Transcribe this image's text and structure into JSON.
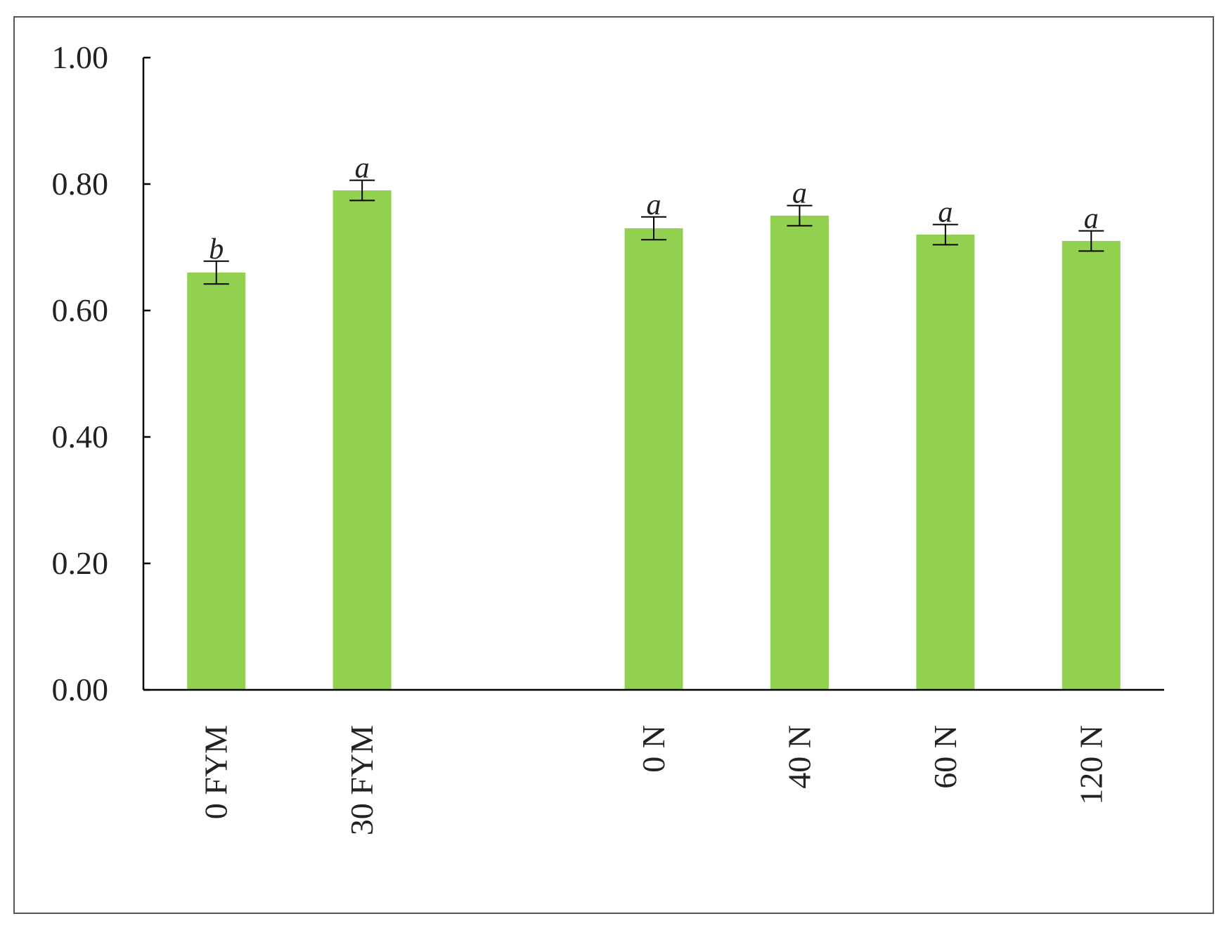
{
  "chart_data": {
    "type": "bar",
    "categories": [
      "0 FYM",
      "30 FYM",
      null,
      "0 N",
      "40 N",
      "60 N",
      "120 N"
    ],
    "values": [
      0.66,
      0.79,
      null,
      0.73,
      0.75,
      0.72,
      0.71
    ],
    "errors": [
      0.018,
      0.016,
      null,
      0.018,
      0.016,
      0.016,
      0.016
    ],
    "letters": [
      "b",
      "a",
      null,
      "a",
      "a",
      "a",
      "a"
    ],
    "color": "#92d050",
    "ylim": [
      0,
      1
    ],
    "yticks": [
      {
        "value": 0,
        "label": "0.00"
      },
      {
        "value": 0.2,
        "label": "0.20"
      },
      {
        "value": 0.4,
        "label": "0.40"
      },
      {
        "value": 0.6,
        "label": "0.60"
      },
      {
        "value": 0.8,
        "label": "0.80"
      },
      {
        "value": 1,
        "label": "1.00"
      }
    ],
    "grid": false
  }
}
